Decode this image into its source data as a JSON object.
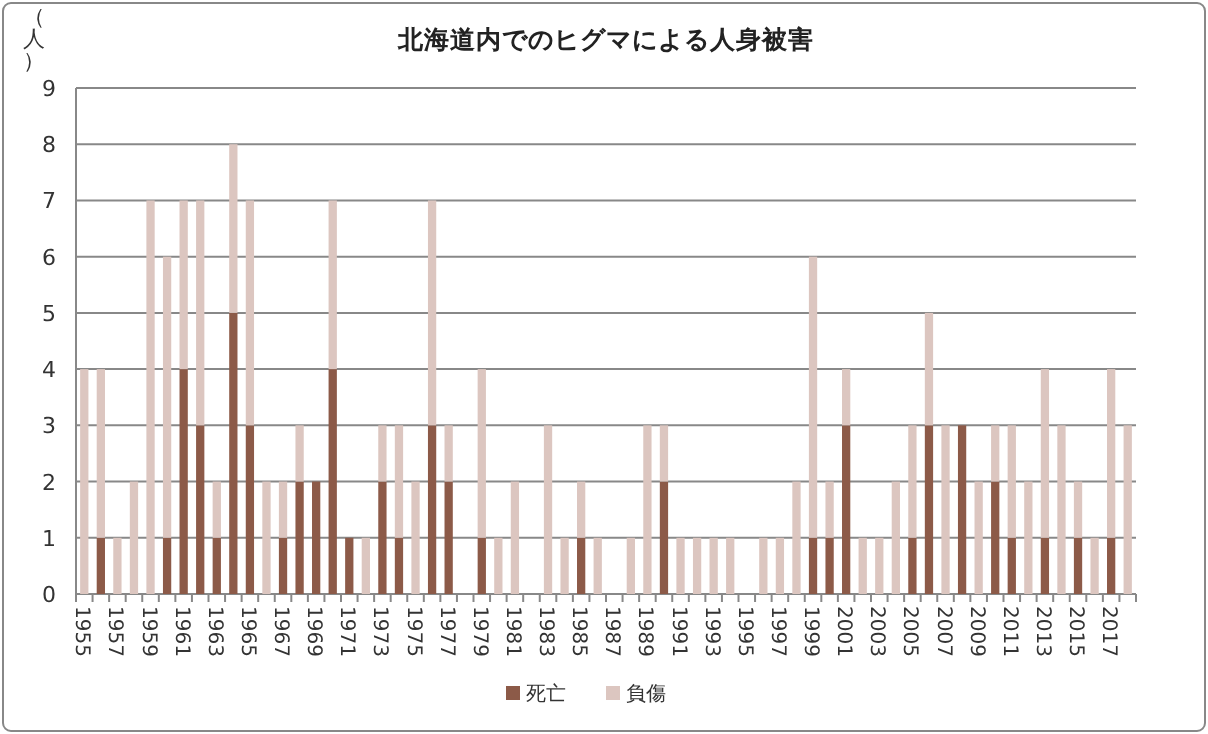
{
  "chart_data": {
    "type": "bar",
    "stacked": true,
    "title": "北海道内でのヒグマによる人身被害",
    "ylabel": "（人）",
    "categories": [
      "1955",
      null,
      "1957",
      null,
      "1959",
      null,
      "1961",
      null,
      "1963",
      null,
      "1965",
      null,
      "1967",
      null,
      "1969",
      null,
      "1971",
      null,
      "1973",
      null,
      "1975",
      null,
      "1977",
      null,
      "1979",
      null,
      "1981",
      null,
      "1983",
      null,
      "1985",
      null,
      "1987",
      null,
      "1989",
      null,
      "1991",
      null,
      "1993",
      null,
      "1995",
      null,
      "1997",
      null,
      "1999",
      null,
      "2001",
      null,
      "2003",
      null,
      "2005",
      null,
      "2007",
      null,
      "2009",
      null,
      "2011",
      null,
      "2013",
      null,
      "2015",
      null,
      "2017",
      null
    ],
    "series": [
      {
        "name": "死亡",
        "color": "#8c5a48",
        "values": [
          0,
          1,
          0,
          0,
          0,
          1,
          4,
          3,
          1,
          5,
          3,
          0,
          1,
          2,
          2,
          4,
          1,
          0,
          2,
          1,
          0,
          3,
          2,
          0,
          1,
          0,
          0,
          0,
          0,
          0,
          1,
          0,
          0,
          0,
          0,
          2,
          0,
          0,
          0,
          0,
          0,
          0,
          0,
          0,
          1,
          1,
          3,
          0,
          0,
          0,
          1,
          3,
          0,
          3,
          0,
          2,
          1,
          0,
          1,
          0,
          1,
          0,
          1,
          0
        ]
      },
      {
        "name": "負傷",
        "color": "#dcc6c0",
        "values": [
          4,
          3,
          1,
          2,
          7,
          5,
          3,
          4,
          1,
          3,
          4,
          2,
          1,
          1,
          0,
          3,
          0,
          1,
          1,
          2,
          2,
          4,
          1,
          0,
          3,
          1,
          2,
          0,
          3,
          1,
          1,
          1,
          0,
          1,
          3,
          1,
          1,
          1,
          1,
          1,
          0,
          1,
          1,
          2,
          5,
          1,
          1,
          1,
          1,
          2,
          2,
          2,
          3,
          0,
          2,
          1,
          2,
          2,
          3,
          3,
          1,
          1,
          3,
          3
        ]
      }
    ],
    "ylim": [
      0,
      9
    ],
    "yticks": [
      0,
      1,
      2,
      3,
      4,
      5,
      6,
      7,
      8,
      9
    ],
    "grid": "y",
    "legend": "bottom"
  }
}
